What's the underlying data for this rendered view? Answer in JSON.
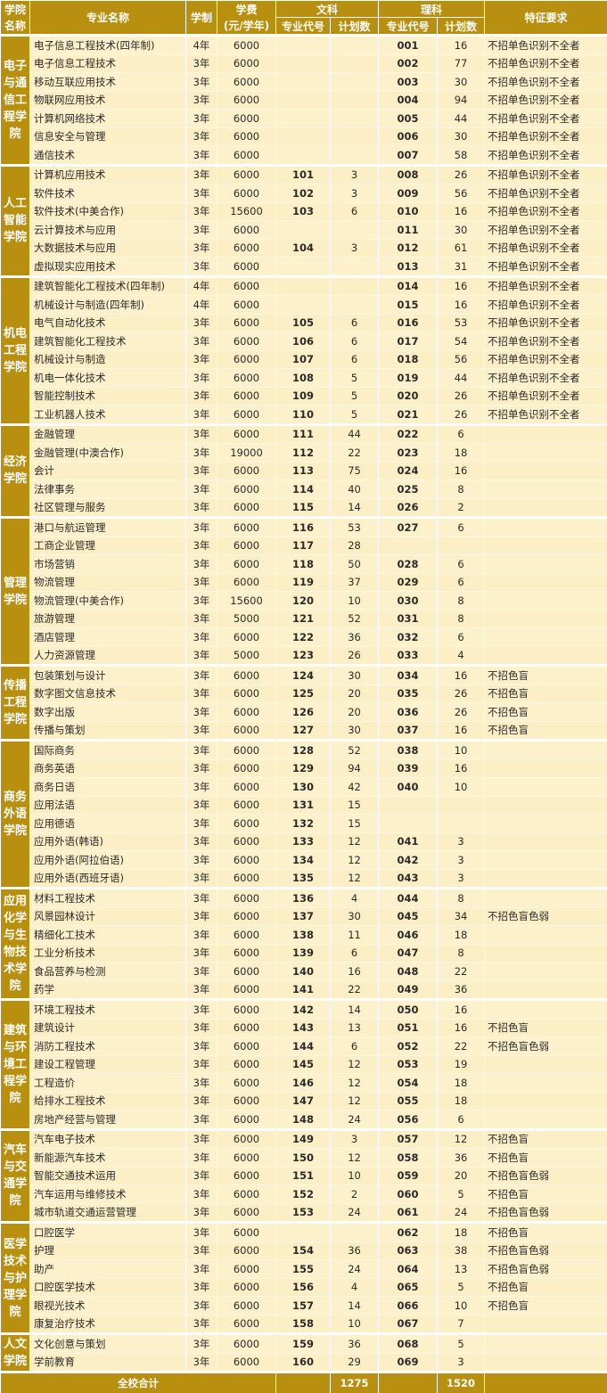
{
  "header": {
    "college": "学院名称",
    "major": "专业名称",
    "years": "学制",
    "fee": "学费",
    "fee_unit": "(元/学年)",
    "wen": "文科",
    "li": "理科",
    "code": "专业代号",
    "plan": "计划数",
    "req": "特征要求"
  },
  "colleges": [
    {
      "name": "电子与通信工程学院",
      "majors": [
        [
          "电子信息工程技术(四年制)",
          "4年",
          "6000",
          "",
          "",
          "001",
          "16",
          "不招单色识别不全者"
        ],
        [
          "电子信息工程技术",
          "3年",
          "6000",
          "",
          "",
          "002",
          "77",
          "不招单色识别不全者"
        ],
        [
          "移动互联应用技术",
          "3年",
          "6000",
          "",
          "",
          "003",
          "30",
          "不招单色识别不全者"
        ],
        [
          "物联网应用技术",
          "3年",
          "6000",
          "",
          "",
          "004",
          "94",
          "不招单色识别不全者"
        ],
        [
          "计算机网络技术",
          "3年",
          "6000",
          "",
          "",
          "005",
          "44",
          "不招单色识别不全者"
        ],
        [
          "信息安全与管理",
          "3年",
          "6000",
          "",
          "",
          "006",
          "30",
          "不招单色识别不全者"
        ],
        [
          "通信技术",
          "3年",
          "6000",
          "",
          "",
          "007",
          "58",
          "不招单色识别不全者"
        ]
      ]
    },
    {
      "name": "人工智能学院",
      "majors": [
        [
          "计算机应用技术",
          "3年",
          "6000",
          "101",
          "3",
          "008",
          "26",
          "不招单色识别不全者"
        ],
        [
          "软件技术",
          "3年",
          "6000",
          "102",
          "3",
          "009",
          "56",
          "不招单色识别不全者"
        ],
        [
          "软件技术(中美合作)",
          "3年",
          "15600",
          "103",
          "6",
          "010",
          "16",
          "不招单色识别不全者"
        ],
        [
          "云计算技术与应用",
          "3年",
          "6000",
          "",
          "",
          "011",
          "30",
          "不招单色识别不全者"
        ],
        [
          "大数据技术与应用",
          "3年",
          "6000",
          "104",
          "3",
          "012",
          "61",
          "不招单色识别不全者"
        ],
        [
          "虚拟现实应用技术",
          "3年",
          "6000",
          "",
          "",
          "013",
          "31",
          "不招单色识别不全者"
        ]
      ]
    },
    {
      "name": "机电工程学院",
      "majors": [
        [
          "建筑智能化工程技术(四年制)",
          "4年",
          "6000",
          "",
          "",
          "014",
          "16",
          "不招单色识别不全者"
        ],
        [
          "机械设计与制造(四年制)",
          "4年",
          "6000",
          "",
          "",
          "015",
          "16",
          "不招单色识别不全者"
        ],
        [
          "电气自动化技术",
          "3年",
          "6000",
          "105",
          "6",
          "016",
          "53",
          "不招单色识别不全者"
        ],
        [
          "建筑智能化工程技术",
          "3年",
          "6000",
          "106",
          "6",
          "017",
          "54",
          "不招单色识别不全者"
        ],
        [
          "机械设计与制造",
          "3年",
          "6000",
          "107",
          "6",
          "018",
          "56",
          "不招单色识别不全者"
        ],
        [
          "机电一体化技术",
          "3年",
          "6000",
          "108",
          "5",
          "019",
          "44",
          "不招单色识别不全者"
        ],
        [
          "智能控制技术",
          "3年",
          "6000",
          "109",
          "5",
          "020",
          "26",
          "不招单色识别不全者"
        ],
        [
          "工业机器人技术",
          "3年",
          "6000",
          "110",
          "5",
          "021",
          "26",
          "不招单色识别不全者"
        ]
      ]
    },
    {
      "name": "经济学院",
      "majors": [
        [
          "金融管理",
          "3年",
          "6000",
          "111",
          "44",
          "022",
          "6",
          ""
        ],
        [
          "金融管理(中澳合作)",
          "3年",
          "19000",
          "112",
          "22",
          "023",
          "18",
          ""
        ],
        [
          "会计",
          "3年",
          "6000",
          "113",
          "75",
          "024",
          "16",
          ""
        ],
        [
          "法律事务",
          "3年",
          "6000",
          "114",
          "40",
          "025",
          "8",
          ""
        ],
        [
          "社区管理与服务",
          "3年",
          "6000",
          "115",
          "14",
          "026",
          "2",
          ""
        ]
      ]
    },
    {
      "name": "管理学院",
      "majors": [
        [
          "港口与航运管理",
          "3年",
          "6000",
          "116",
          "53",
          "027",
          "6",
          ""
        ],
        [
          "工商企业管理",
          "3年",
          "6000",
          "117",
          "28",
          "",
          "",
          ""
        ],
        [
          "市场营销",
          "3年",
          "6000",
          "118",
          "50",
          "028",
          "6",
          ""
        ],
        [
          "物流管理",
          "3年",
          "6000",
          "119",
          "37",
          "029",
          "6",
          ""
        ],
        [
          "物流管理(中美合作)",
          "3年",
          "15600",
          "120",
          "10",
          "030",
          "8",
          ""
        ],
        [
          "旅游管理",
          "3年",
          "5000",
          "121",
          "52",
          "031",
          "8",
          ""
        ],
        [
          "酒店管理",
          "3年",
          "6000",
          "122",
          "36",
          "032",
          "6",
          ""
        ],
        [
          "人力资源管理",
          "3年",
          "5000",
          "123",
          "26",
          "033",
          "4",
          ""
        ]
      ]
    },
    {
      "name": "传播工程学院",
      "majors": [
        [
          "包装策划与设计",
          "3年",
          "6000",
          "124",
          "30",
          "034",
          "16",
          "不招色盲"
        ],
        [
          "数字图文信息技术",
          "3年",
          "6000",
          "125",
          "20",
          "035",
          "26",
          "不招色盲"
        ],
        [
          "数字出版",
          "3年",
          "6000",
          "126",
          "20",
          "036",
          "26",
          "不招色盲"
        ],
        [
          "传播与策划",
          "3年",
          "6000",
          "127",
          "30",
          "037",
          "16",
          "不招色盲"
        ]
      ]
    },
    {
      "name": "商务外语学院",
      "majors": [
        [
          "国际商务",
          "3年",
          "6000",
          "128",
          "52",
          "038",
          "10",
          ""
        ],
        [
          "商务英语",
          "3年",
          "6000",
          "129",
          "94",
          "039",
          "16",
          ""
        ],
        [
          "商务日语",
          "3年",
          "6000",
          "130",
          "42",
          "040",
          "10",
          ""
        ],
        [
          "应用法语",
          "3年",
          "6000",
          "131",
          "15",
          "",
          "",
          ""
        ],
        [
          "应用德语",
          "3年",
          "6000",
          "132",
          "15",
          "",
          "",
          ""
        ],
        [
          "应用外语(韩语)",
          "3年",
          "6000",
          "133",
          "12",
          "041",
          "3",
          ""
        ],
        [
          "应用外语(阿拉伯语)",
          "3年",
          "6000",
          "134",
          "12",
          "042",
          "3",
          ""
        ],
        [
          "应用外语(西班牙语)",
          "3年",
          "6000",
          "135",
          "12",
          "043",
          "3",
          ""
        ]
      ]
    },
    {
      "name": "应用化学与生物技术学院",
      "majors": [
        [
          "材料工程技术",
          "3年",
          "6000",
          "136",
          "4",
          "044",
          "8",
          ""
        ],
        [
          "风景园林设计",
          "3年",
          "6000",
          "137",
          "30",
          "045",
          "34",
          "不招色盲色弱"
        ],
        [
          "精细化工技术",
          "3年",
          "6000",
          "138",
          "11",
          "046",
          "18",
          ""
        ],
        [
          "工业分析技术",
          "3年",
          "6000",
          "139",
          "6",
          "047",
          "8",
          ""
        ],
        [
          "食品营养与检测",
          "3年",
          "6000",
          "140",
          "16",
          "048",
          "22",
          ""
        ],
        [
          "药学",
          "3年",
          "6000",
          "141",
          "22",
          "049",
          "36",
          ""
        ]
      ]
    },
    {
      "name": "建筑与环境工程学院",
      "majors": [
        [
          "环境工程技术",
          "3年",
          "6000",
          "142",
          "14",
          "050",
          "16",
          ""
        ],
        [
          "建筑设计",
          "3年",
          "6000",
          "143",
          "13",
          "051",
          "16",
          "不招色盲"
        ],
        [
          "消防工程技术",
          "3年",
          "6000",
          "144",
          "6",
          "052",
          "22",
          "不招色盲色弱"
        ],
        [
          "建设工程管理",
          "3年",
          "6000",
          "145",
          "12",
          "053",
          "19",
          ""
        ],
        [
          "工程造价",
          "3年",
          "6000",
          "146",
          "12",
          "054",
          "18",
          ""
        ],
        [
          "给排水工程技术",
          "3年",
          "6000",
          "147",
          "12",
          "055",
          "18",
          ""
        ],
        [
          "房地产经营与管理",
          "3年",
          "6000",
          "148",
          "24",
          "056",
          "6",
          ""
        ]
      ]
    },
    {
      "name": "汽车与交通学院",
      "majors": [
        [
          "汽车电子技术",
          "3年",
          "6000",
          "149",
          "3",
          "057",
          "12",
          "不招色盲"
        ],
        [
          "新能源汽车技术",
          "3年",
          "6000",
          "150",
          "12",
          "058",
          "36",
          "不招色盲"
        ],
        [
          "智能交通技术运用",
          "3年",
          "6000",
          "151",
          "10",
          "059",
          "20",
          "不招色盲色弱"
        ],
        [
          "汽车运用与维修技术",
          "3年",
          "6000",
          "152",
          "2",
          "060",
          "5",
          "不招色盲"
        ],
        [
          "城市轨道交通运营管理",
          "3年",
          "6000",
          "153",
          "24",
          "061",
          "24",
          "不招色盲色弱"
        ]
      ]
    },
    {
      "name": "医学技术与护理学院",
      "majors": [
        [
          "口腔医学",
          "3年",
          "6000",
          "",
          "",
          "062",
          "18",
          "不招色盲"
        ],
        [
          "护理",
          "3年",
          "6000",
          "154",
          "36",
          "063",
          "38",
          "不招色盲色弱"
        ],
        [
          "助产",
          "3年",
          "6000",
          "155",
          "24",
          "064",
          "13",
          "不招色盲色弱"
        ],
        [
          "口腔医学技术",
          "3年",
          "6000",
          "156",
          "4",
          "065",
          "5",
          "不招色盲"
        ],
        [
          "眼视光技术",
          "3年",
          "6000",
          "157",
          "14",
          "066",
          "10",
          "不招色盲"
        ],
        [
          "康复治疗技术",
          "3年",
          "6000",
          "158",
          "10",
          "067",
          "7",
          ""
        ]
      ]
    },
    {
      "name": "人文学院",
      "majors": [
        [
          "文化创意与策划",
          "3年",
          "6000",
          "159",
          "36",
          "068",
          "5",
          ""
        ],
        [
          "学前教育",
          "3年",
          "6000",
          "160",
          "29",
          "069",
          "3",
          ""
        ]
      ]
    }
  ],
  "total": {
    "label": "全校合计",
    "wen_plan": "1275",
    "li_plan": "1520"
  },
  "colors": {
    "gold": "#b98f10",
    "cream": "#fdf1cc"
  }
}
